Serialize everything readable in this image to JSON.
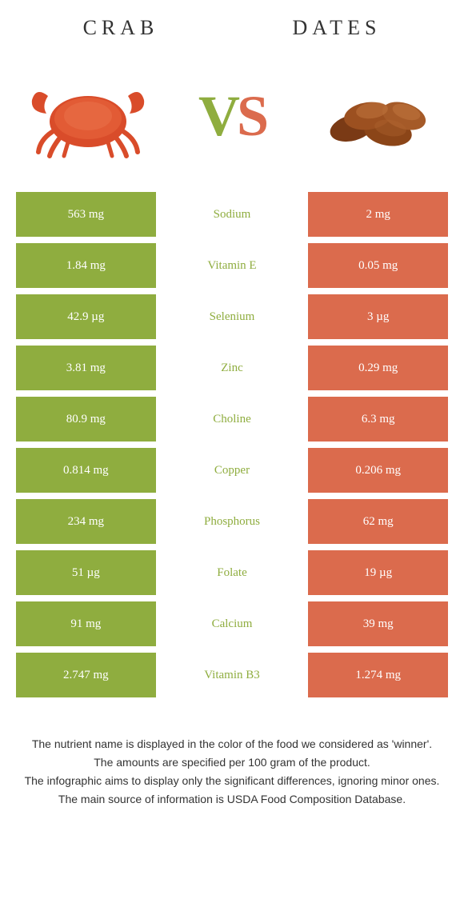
{
  "colors": {
    "green": "#8fad3f",
    "orange": "#db6b4d",
    "vs_v": "#8fad3f",
    "vs_s": "#db6b4d",
    "header_text": "#333333",
    "footer_text": "#333333"
  },
  "header": {
    "left": "CRAB",
    "right": "DATES"
  },
  "vs": {
    "v": "V",
    "s": "S"
  },
  "rows": [
    {
      "left": "563 mg",
      "mid": "Sodium",
      "right": "2 mg",
      "mid_color": "green"
    },
    {
      "left": "1.84 mg",
      "mid": "Vitamin E",
      "right": "0.05 mg",
      "mid_color": "green"
    },
    {
      "left": "42.9 µg",
      "mid": "Selenium",
      "right": "3 µg",
      "mid_color": "green"
    },
    {
      "left": "3.81 mg",
      "mid": "Zinc",
      "right": "0.29 mg",
      "mid_color": "green"
    },
    {
      "left": "80.9 mg",
      "mid": "Choline",
      "right": "6.3 mg",
      "mid_color": "green"
    },
    {
      "left": "0.814 mg",
      "mid": "Copper",
      "right": "0.206 mg",
      "mid_color": "green"
    },
    {
      "left": "234 mg",
      "mid": "Phosphorus",
      "right": "62 mg",
      "mid_color": "green"
    },
    {
      "left": "51 µg",
      "mid": "Folate",
      "right": "19 µg",
      "mid_color": "green"
    },
    {
      "left": "91 mg",
      "mid": "Calcium",
      "right": "39 mg",
      "mid_color": "green"
    },
    {
      "left": "2.747 mg",
      "mid": "Vitamin B3",
      "right": "1.274 mg",
      "mid_color": "green"
    }
  ],
  "footer": {
    "l1": "The nutrient name is displayed in the color of the food we considered as 'winner'.",
    "l2": "The amounts are specified per 100 gram of the product.",
    "l3": "The infographic aims to display only the significant differences, ignoring minor ones.",
    "l4": "The main source of information is USDA Food Composition Database."
  }
}
